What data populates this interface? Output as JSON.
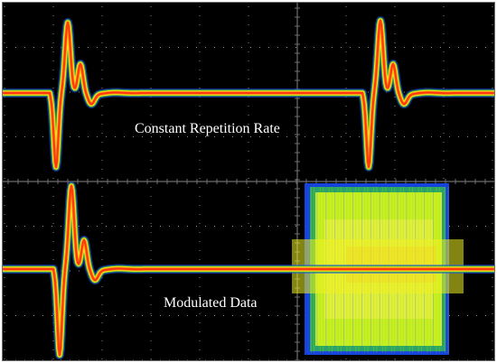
{
  "labels": {
    "top": "Constant Repetition Rate",
    "bottom": "Modulated Data"
  },
  "colors": {
    "background": "#000000",
    "graticule": "#6e6e6e",
    "dots": "#8a8a8a",
    "trace_core": "#ff3a10",
    "trace_mid": "#ff9a10",
    "trace_outer": "#f0f020",
    "trace_fringe": "#3aa040",
    "trace_edge": "#1a4fff",
    "noise_fill": "#c8f020"
  },
  "traces": [
    {
      "id": "top-constant-rate",
      "pulses": 2,
      "display": "persistence"
    },
    {
      "id": "bottom-modulated",
      "pulses": 1,
      "display": "persistence",
      "noise_burst": true
    }
  ]
}
